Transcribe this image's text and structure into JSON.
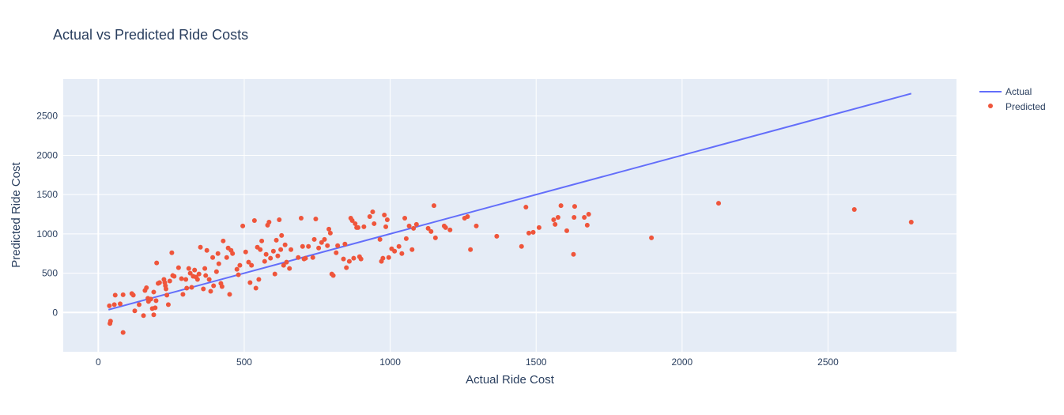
{
  "chart_data": {
    "type": "scatter",
    "title": "Actual vs Predicted Ride Costs",
    "xlabel": "Actual Ride Cost",
    "ylabel": "Predicted Ride Cost",
    "xlim": [
      -120,
      2940
    ],
    "ylim": [
      -500,
      2970
    ],
    "xticks": [
      0,
      500,
      1000,
      1500,
      2000,
      2500
    ],
    "yticks": [
      0,
      500,
      1000,
      1500,
      2000,
      2500
    ],
    "grid": true,
    "legend_position": "top-right",
    "colors": {
      "actual": "#636efa",
      "predicted": "#ef553b",
      "plot_bg": "#e5ecf6",
      "grid": "#ffffff",
      "text": "#2a3f5f"
    },
    "series": [
      {
        "name": "Actual",
        "mode": "line",
        "x": [
          35,
          2785
        ],
        "y": [
          35,
          2785
        ]
      },
      {
        "name": "Predicted",
        "mode": "markers",
        "points": [
          [
            38,
            85
          ],
          [
            40,
            -140
          ],
          [
            42,
            -110
          ],
          [
            55,
            100
          ],
          [
            58,
            220
          ],
          [
            75,
            110
          ],
          [
            85,
            225
          ],
          [
            85,
            -255
          ],
          [
            115,
            240
          ],
          [
            120,
            220
          ],
          [
            125,
            20
          ],
          [
            140,
            100
          ],
          [
            155,
            -40
          ],
          [
            160,
            280
          ],
          [
            165,
            315
          ],
          [
            170,
            180
          ],
          [
            172,
            140
          ],
          [
            180,
            170
          ],
          [
            185,
            50
          ],
          [
            190,
            -30
          ],
          [
            190,
            260
          ],
          [
            195,
            60
          ],
          [
            198,
            150
          ],
          [
            200,
            630
          ],
          [
            205,
            370
          ],
          [
            210,
            380
          ],
          [
            225,
            420
          ],
          [
            228,
            380
          ],
          [
            230,
            340
          ],
          [
            232,
            300
          ],
          [
            235,
            220
          ],
          [
            240,
            100
          ],
          [
            245,
            400
          ],
          [
            252,
            760
          ],
          [
            255,
            470
          ],
          [
            260,
            460
          ],
          [
            275,
            570
          ],
          [
            285,
            430
          ],
          [
            290,
            230
          ],
          [
            300,
            420
          ],
          [
            303,
            310
          ],
          [
            310,
            560
          ],
          [
            315,
            500
          ],
          [
            320,
            320
          ],
          [
            325,
            460
          ],
          [
            330,
            540
          ],
          [
            335,
            450
          ],
          [
            340,
            420
          ],
          [
            345,
            490
          ],
          [
            350,
            830
          ],
          [
            360,
            300
          ],
          [
            365,
            560
          ],
          [
            368,
            470
          ],
          [
            372,
            790
          ],
          [
            380,
            420
          ],
          [
            385,
            270
          ],
          [
            392,
            700
          ],
          [
            395,
            340
          ],
          [
            405,
            520
          ],
          [
            410,
            750
          ],
          [
            413,
            620
          ],
          [
            420,
            370
          ],
          [
            424,
            330
          ],
          [
            428,
            910
          ],
          [
            440,
            700
          ],
          [
            445,
            820
          ],
          [
            450,
            230
          ],
          [
            455,
            790
          ],
          [
            460,
            750
          ],
          [
            475,
            550
          ],
          [
            480,
            480
          ],
          [
            485,
            600
          ],
          [
            495,
            1100
          ],
          [
            505,
            770
          ],
          [
            515,
            640
          ],
          [
            520,
            380
          ],
          [
            525,
            600
          ],
          [
            535,
            1170
          ],
          [
            540,
            310
          ],
          [
            545,
            830
          ],
          [
            550,
            420
          ],
          [
            555,
            800
          ],
          [
            560,
            910
          ],
          [
            570,
            650
          ],
          [
            575,
            740
          ],
          [
            580,
            1110
          ],
          [
            585,
            1150
          ],
          [
            590,
            690
          ],
          [
            600,
            780
          ],
          [
            605,
            490
          ],
          [
            610,
            920
          ],
          [
            615,
            720
          ],
          [
            620,
            1180
          ],
          [
            625,
            800
          ],
          [
            628,
            980
          ],
          [
            635,
            600
          ],
          [
            640,
            860
          ],
          [
            645,
            640
          ],
          [
            655,
            560
          ],
          [
            660,
            800
          ],
          [
            685,
            700
          ],
          [
            695,
            1200
          ],
          [
            700,
            840
          ],
          [
            705,
            680
          ],
          [
            710,
            690
          ],
          [
            720,
            840
          ],
          [
            735,
            700
          ],
          [
            740,
            930
          ],
          [
            745,
            1190
          ],
          [
            755,
            820
          ],
          [
            765,
            890
          ],
          [
            775,
            930
          ],
          [
            785,
            850
          ],
          [
            790,
            1060
          ],
          [
            795,
            1010
          ],
          [
            800,
            490
          ],
          [
            805,
            470
          ],
          [
            815,
            760
          ],
          [
            820,
            850
          ],
          [
            840,
            680
          ],
          [
            845,
            870
          ],
          [
            850,
            570
          ],
          [
            860,
            650
          ],
          [
            865,
            1200
          ],
          [
            870,
            1170
          ],
          [
            875,
            690
          ],
          [
            880,
            1130
          ],
          [
            885,
            1080
          ],
          [
            890,
            1080
          ],
          [
            895,
            710
          ],
          [
            900,
            680
          ],
          [
            910,
            1090
          ],
          [
            930,
            1220
          ],
          [
            940,
            1280
          ],
          [
            945,
            1130
          ],
          [
            965,
            930
          ],
          [
            970,
            650
          ],
          [
            975,
            690
          ],
          [
            980,
            1240
          ],
          [
            985,
            1090
          ],
          [
            990,
            1180
          ],
          [
            995,
            700
          ],
          [
            1005,
            810
          ],
          [
            1015,
            780
          ],
          [
            1030,
            840
          ],
          [
            1040,
            750
          ],
          [
            1050,
            1200
          ],
          [
            1055,
            940
          ],
          [
            1065,
            1100
          ],
          [
            1075,
            800
          ],
          [
            1080,
            1070
          ],
          [
            1090,
            1120
          ],
          [
            1130,
            1070
          ],
          [
            1140,
            1030
          ],
          [
            1150,
            1360
          ],
          [
            1155,
            950
          ],
          [
            1185,
            1100
          ],
          [
            1190,
            1080
          ],
          [
            1205,
            1050
          ],
          [
            1255,
            1200
          ],
          [
            1265,
            1220
          ],
          [
            1275,
            800
          ],
          [
            1295,
            1100
          ],
          [
            1365,
            970
          ],
          [
            1450,
            840
          ],
          [
            1465,
            1340
          ],
          [
            1475,
            1010
          ],
          [
            1490,
            1020
          ],
          [
            1510,
            1080
          ],
          [
            1560,
            1180
          ],
          [
            1565,
            1120
          ],
          [
            1575,
            1210
          ],
          [
            1585,
            1360
          ],
          [
            1605,
            1040
          ],
          [
            1628,
            740
          ],
          [
            1630,
            1210
          ],
          [
            1632,
            1350
          ],
          [
            1665,
            1210
          ],
          [
            1675,
            1110
          ],
          [
            1680,
            1250
          ],
          [
            1895,
            950
          ],
          [
            2125,
            1390
          ],
          [
            2590,
            1310
          ],
          [
            2785,
            1150
          ]
        ]
      }
    ]
  }
}
